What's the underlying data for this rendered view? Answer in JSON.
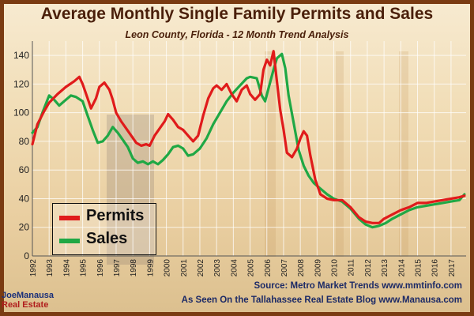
{
  "title": "Average Monthly Single Family Permits and Sales",
  "subtitle": "Leon County, Florida - 12 Month Trend Analysis",
  "footer": {
    "source": "Source: Metro Market Trends  www.mmtinfo.com",
    "blog": "As Seen On the Tallahassee Real Estate Blog  www.Manausa.com"
  },
  "logo": {
    "name": "JoeManausa",
    "sub": "Real Estate"
  },
  "colors": {
    "permits": "#e01b1b",
    "sales": "#1fa845",
    "frame": "#7a3b12",
    "title": "#4a1f0a",
    "footer": "#1c2a66"
  },
  "chart_data": {
    "type": "line",
    "xlim": [
      1992,
      2017.9
    ],
    "ylim": [
      0,
      150
    ],
    "yticks": [
      0,
      20,
      40,
      60,
      80,
      100,
      120,
      140
    ],
    "xticks": [
      "1992",
      "1993",
      "1994",
      "1995",
      "1996",
      "1997",
      "1998",
      "1999",
      "2000",
      "2001",
      "2002",
      "2003",
      "2004",
      "2005",
      "2006",
      "2007",
      "2008",
      "2009",
      "2010",
      "2011",
      "2012",
      "2013",
      "2014",
      "2015",
      "2016",
      "2017"
    ],
    "grid": true,
    "legend_position": "bottom-left",
    "series": [
      {
        "name": "Permits",
        "color": "#e01b1b",
        "points": [
          [
            1992.0,
            78
          ],
          [
            1992.3,
            92
          ],
          [
            1992.7,
            101
          ],
          [
            1993.0,
            107
          ],
          [
            1993.5,
            113
          ],
          [
            1994.0,
            118
          ],
          [
            1994.5,
            122
          ],
          [
            1994.8,
            125
          ],
          [
            1995.0,
            120
          ],
          [
            1995.3,
            110
          ],
          [
            1995.5,
            103
          ],
          [
            1995.8,
            110
          ],
          [
            1996.0,
            118
          ],
          [
            1996.3,
            121
          ],
          [
            1996.6,
            116
          ],
          [
            1996.8,
            109
          ],
          [
            1997.0,
            100
          ],
          [
            1997.3,
            94
          ],
          [
            1997.6,
            89
          ],
          [
            1997.9,
            84
          ],
          [
            1998.2,
            79
          ],
          [
            1998.5,
            77
          ],
          [
            1998.8,
            78
          ],
          [
            1999.0,
            77
          ],
          [
            1999.3,
            84
          ],
          [
            1999.6,
            89
          ],
          [
            1999.9,
            94
          ],
          [
            2000.1,
            99
          ],
          [
            2000.4,
            95
          ],
          [
            2000.7,
            90
          ],
          [
            2001.0,
            88
          ],
          [
            2001.3,
            84
          ],
          [
            2001.6,
            80
          ],
          [
            2001.9,
            84
          ],
          [
            2002.2,
            98
          ],
          [
            2002.5,
            110
          ],
          [
            2002.8,
            117
          ],
          [
            2003.0,
            119
          ],
          [
            2003.3,
            116
          ],
          [
            2003.6,
            120
          ],
          [
            2003.9,
            113
          ],
          [
            2004.2,
            108
          ],
          [
            2004.5,
            116
          ],
          [
            2004.8,
            119
          ],
          [
            2005.0,
            113
          ],
          [
            2005.3,
            109
          ],
          [
            2005.6,
            113
          ],
          [
            2005.8,
            130
          ],
          [
            2006.0,
            137
          ],
          [
            2006.2,
            133
          ],
          [
            2006.4,
            143
          ],
          [
            2006.6,
            122
          ],
          [
            2006.8,
            102
          ],
          [
            2007.0,
            88
          ],
          [
            2007.2,
            72
          ],
          [
            2007.5,
            69
          ],
          [
            2007.8,
            75
          ],
          [
            2008.0,
            82
          ],
          [
            2008.2,
            87
          ],
          [
            2008.4,
            84
          ],
          [
            2008.6,
            70
          ],
          [
            2008.9,
            53
          ],
          [
            2009.2,
            43
          ],
          [
            2009.6,
            40
          ],
          [
            2010.0,
            39
          ],
          [
            2010.5,
            39
          ],
          [
            2011.0,
            34
          ],
          [
            2011.5,
            27
          ],
          [
            2011.9,
            24
          ],
          [
            2012.3,
            23
          ],
          [
            2012.7,
            23
          ],
          [
            2013.0,
            26
          ],
          [
            2013.5,
            29
          ],
          [
            2014.0,
            32
          ],
          [
            2014.5,
            34
          ],
          [
            2015.0,
            37
          ],
          [
            2015.5,
            37
          ],
          [
            2016.0,
            38
          ],
          [
            2016.5,
            39
          ],
          [
            2017.0,
            40
          ],
          [
            2017.5,
            41
          ],
          [
            2017.8,
            42
          ]
        ]
      },
      {
        "name": "Sales",
        "color": "#1fa845",
        "points": [
          [
            1992.0,
            86
          ],
          [
            1992.3,
            90
          ],
          [
            1992.6,
            100
          ],
          [
            1993.0,
            112
          ],
          [
            1993.3,
            109
          ],
          [
            1993.6,
            105
          ],
          [
            1994.0,
            109
          ],
          [
            1994.3,
            112
          ],
          [
            1994.6,
            111
          ],
          [
            1995.0,
            108
          ],
          [
            1995.3,
            98
          ],
          [
            1995.6,
            88
          ],
          [
            1995.9,
            79
          ],
          [
            1996.2,
            80
          ],
          [
            1996.5,
            84
          ],
          [
            1996.8,
            90
          ],
          [
            1997.1,
            86
          ],
          [
            1997.4,
            81
          ],
          [
            1997.7,
            76
          ],
          [
            1998.0,
            68
          ],
          [
            1998.3,
            65
          ],
          [
            1998.6,
            66
          ],
          [
            1998.9,
            64
          ],
          [
            1999.2,
            66
          ],
          [
            1999.5,
            64
          ],
          [
            1999.8,
            67
          ],
          [
            2000.1,
            71
          ],
          [
            2000.4,
            76
          ],
          [
            2000.7,
            77
          ],
          [
            2001.0,
            75
          ],
          [
            2001.3,
            70
          ],
          [
            2001.6,
            71
          ],
          [
            2002.0,
            75
          ],
          [
            2002.4,
            82
          ],
          [
            2002.8,
            92
          ],
          [
            2003.2,
            100
          ],
          [
            2003.6,
            108
          ],
          [
            2004.0,
            114
          ],
          [
            2004.4,
            119
          ],
          [
            2004.8,
            124
          ],
          [
            2005.0,
            125
          ],
          [
            2005.4,
            124
          ],
          [
            2005.7,
            112
          ],
          [
            2005.9,
            108
          ],
          [
            2006.1,
            117
          ],
          [
            2006.4,
            130
          ],
          [
            2006.6,
            138
          ],
          [
            2006.9,
            141
          ],
          [
            2007.1,
            131
          ],
          [
            2007.3,
            112
          ],
          [
            2007.6,
            93
          ],
          [
            2007.9,
            74
          ],
          [
            2008.2,
            63
          ],
          [
            2008.5,
            56
          ],
          [
            2008.8,
            51
          ],
          [
            2009.2,
            47
          ],
          [
            2009.6,
            43
          ],
          [
            2010.0,
            40
          ],
          [
            2010.5,
            38
          ],
          [
            2011.0,
            33
          ],
          [
            2011.5,
            26
          ],
          [
            2011.9,
            22
          ],
          [
            2012.3,
            20
          ],
          [
            2012.7,
            21
          ],
          [
            2013.1,
            23
          ],
          [
            2013.5,
            26
          ],
          [
            2014.0,
            29
          ],
          [
            2014.5,
            32
          ],
          [
            2015.0,
            34
          ],
          [
            2015.5,
            35
          ],
          [
            2016.0,
            36
          ],
          [
            2016.5,
            37
          ],
          [
            2017.0,
            38
          ],
          [
            2017.5,
            39
          ],
          [
            2017.8,
            43
          ]
        ]
      }
    ]
  }
}
